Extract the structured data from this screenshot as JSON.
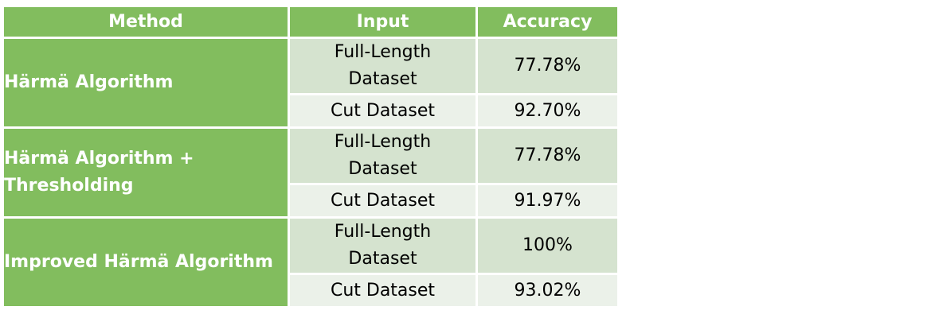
{
  "chart_data": {
    "type": "table",
    "columns": [
      "Method",
      "Input",
      "Accuracy"
    ],
    "rows": [
      {
        "method": "Härmä Algorithm",
        "entries": [
          {
            "input": "Full-Length Dataset",
            "accuracy": "77.78%"
          },
          {
            "input": "Cut Dataset",
            "accuracy": "92.70%"
          }
        ]
      },
      {
        "method": "Härmä Algorithm + Thresholding",
        "entries": [
          {
            "input": "Full-Length Dataset",
            "accuracy": "77.78%"
          },
          {
            "input": "Cut Dataset",
            "accuracy": "91.97%"
          }
        ]
      },
      {
        "method": "Improved Härmä Algorithm",
        "entries": [
          {
            "input": "Full-Length Dataset",
            "accuracy": "100%"
          },
          {
            "input": "Cut Dataset",
            "accuracy": "93.02%"
          }
        ]
      }
    ]
  },
  "colors": {
    "header_bg": "#82bd5e",
    "method_bg": "#82bd5e",
    "full_row_bg": "#d5e3cf",
    "cut_row_bg": "#ebf1e9",
    "header_text": "#ffffff",
    "body_text": "#000000"
  }
}
